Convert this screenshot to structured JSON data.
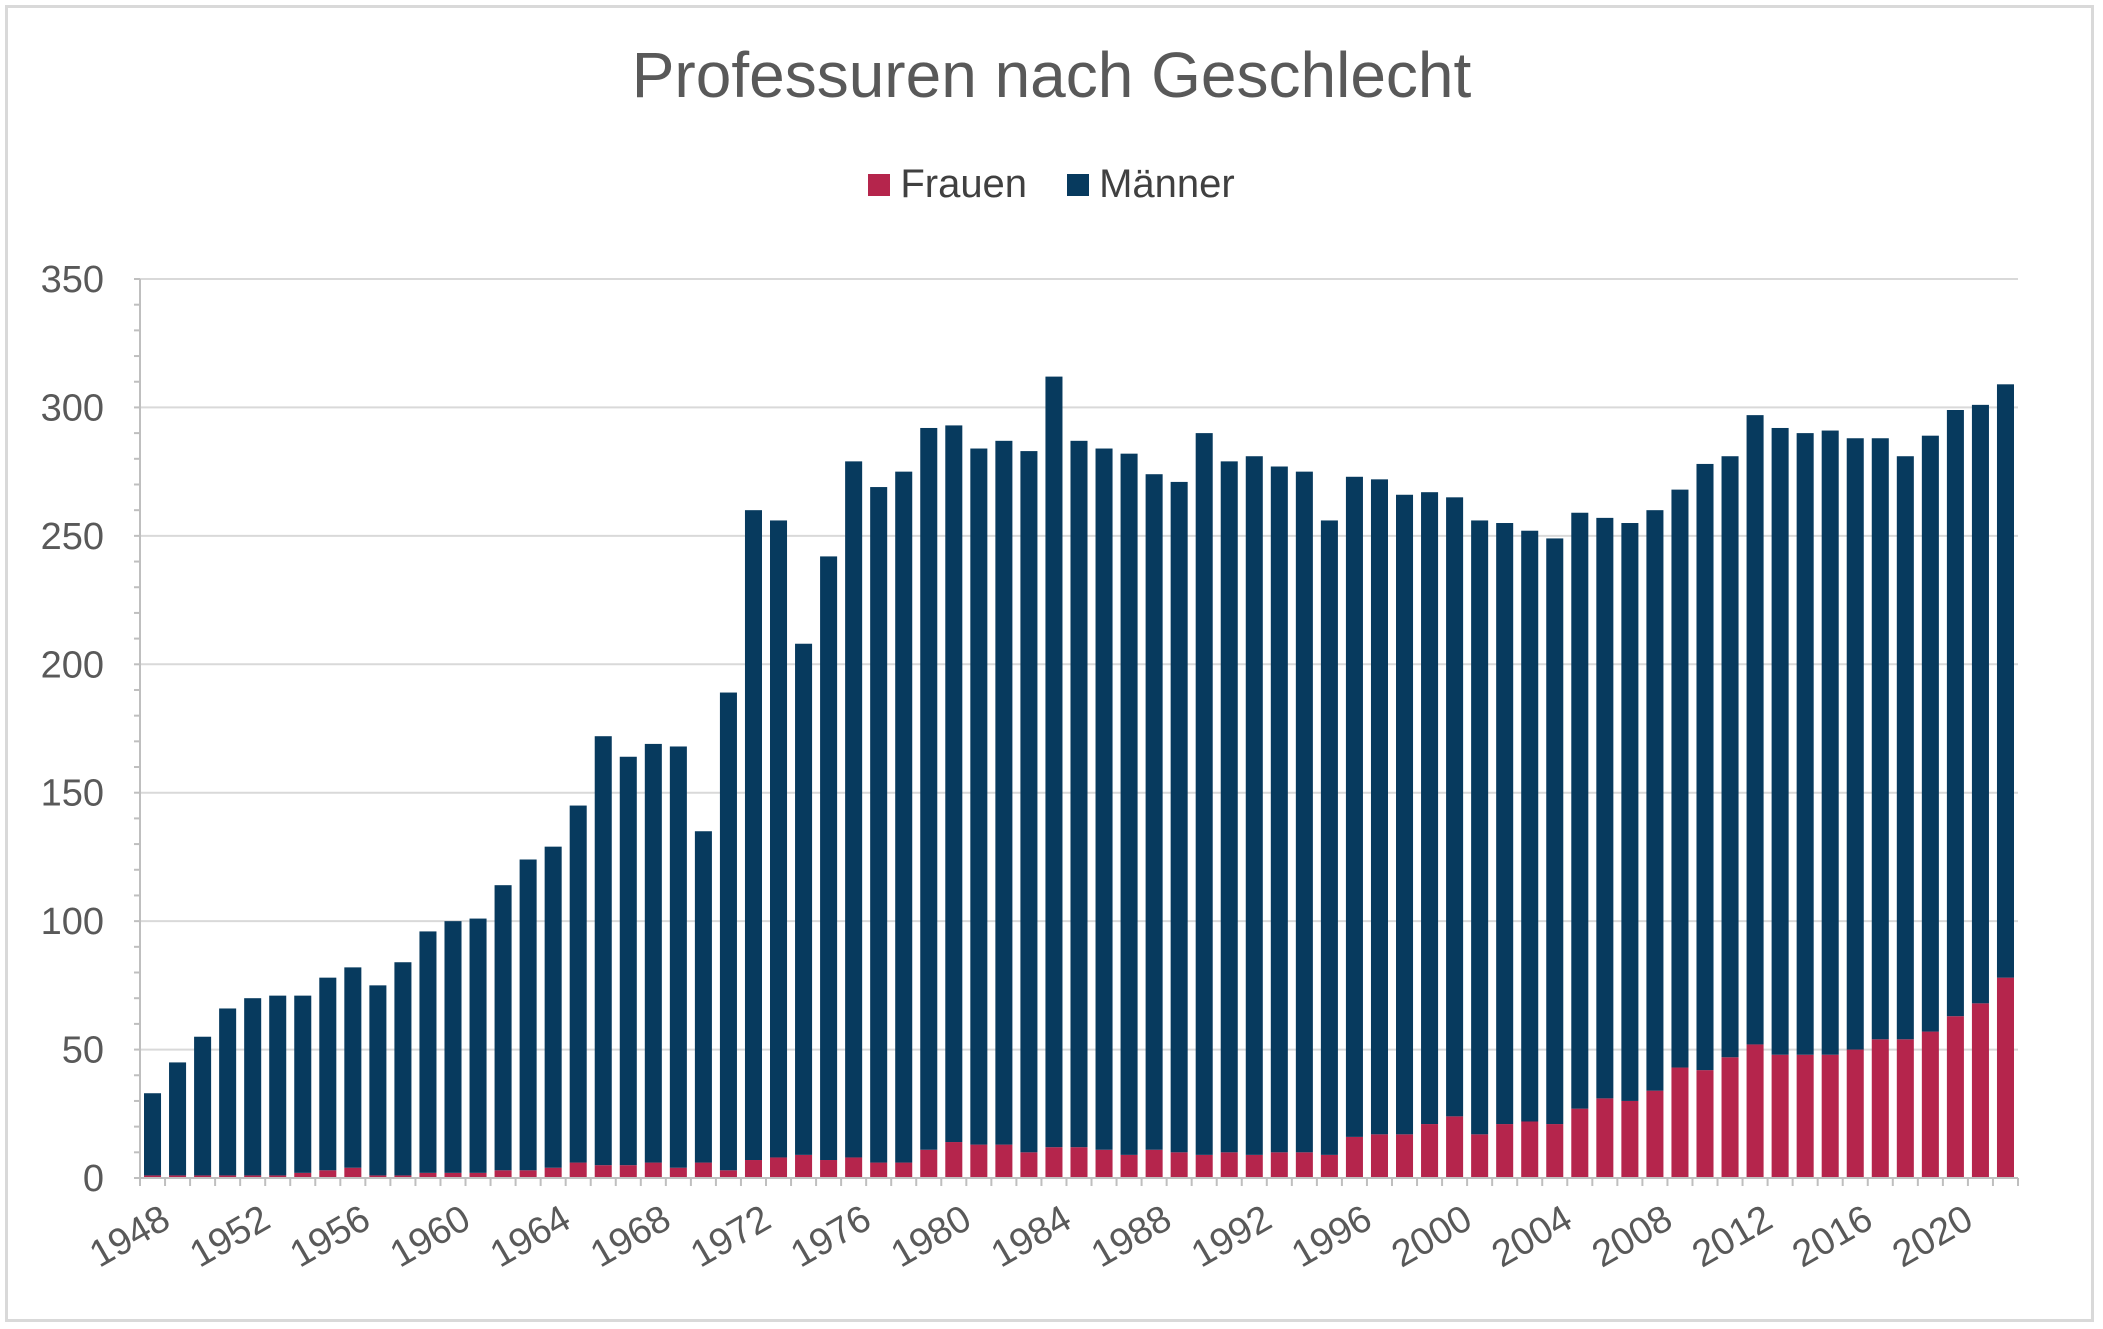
{
  "chart_data": {
    "type": "bar",
    "stacked": true,
    "title": "Professuren nach Geschlecht",
    "xlabel": "",
    "ylabel": "",
    "ylim": [
      0,
      350
    ],
    "yticks": [
      0,
      50,
      100,
      150,
      200,
      250,
      300,
      350
    ],
    "grid": true,
    "legend_position": "top",
    "x": [
      1948,
      1949,
      1950,
      1951,
      1952,
      1953,
      1954,
      1955,
      1956,
      1957,
      1958,
      1959,
      1960,
      1961,
      1962,
      1963,
      1964,
      1965,
      1966,
      1967,
      1968,
      1969,
      1970,
      1971,
      1972,
      1973,
      1974,
      1975,
      1976,
      1977,
      1978,
      1979,
      1980,
      1981,
      1982,
      1983,
      1984,
      1985,
      1986,
      1987,
      1988,
      1989,
      1990,
      1991,
      1992,
      1993,
      1994,
      1995,
      1996,
      1997,
      1998,
      1999,
      2000,
      2001,
      2002,
      2003,
      2004,
      2005,
      2006,
      2007,
      2008,
      2009,
      2010,
      2011,
      2012,
      2013,
      2014,
      2015,
      2016,
      2017,
      2018,
      2019,
      2020,
      2021,
      2022
    ],
    "xtick_labels": [
      "1948",
      "1952",
      "1956",
      "1960",
      "1964",
      "1968",
      "1972",
      "1976",
      "1980",
      "1984",
      "1988",
      "1992",
      "1996",
      "2000",
      "2004",
      "2008",
      "2012",
      "2016",
      "2020"
    ],
    "series": [
      {
        "name": "Frauen",
        "color": "#b5254c",
        "values": [
          1,
          1,
          1,
          1,
          1,
          1,
          2,
          3,
          4,
          1,
          1,
          2,
          2,
          2,
          3,
          3,
          4,
          6,
          5,
          5,
          6,
          4,
          6,
          3,
          7,
          8,
          9,
          7,
          8,
          6,
          6,
          11,
          14,
          13,
          13,
          10,
          12,
          12,
          11,
          9,
          11,
          10,
          9,
          10,
          9,
          10,
          10,
          9,
          16,
          17,
          17,
          21,
          24,
          17,
          21,
          22,
          21,
          27,
          31,
          30,
          34,
          43,
          42,
          47,
          52,
          48,
          48,
          48,
          50,
          54,
          54,
          57,
          63,
          68,
          78
        ]
      },
      {
        "name": "Männer",
        "color": "#073a5e",
        "values": [
          32,
          44,
          54,
          65,
          69,
          70,
          69,
          75,
          78,
          74,
          83,
          94,
          98,
          99,
          111,
          121,
          125,
          139,
          167,
          159,
          163,
          164,
          129,
          186,
          253,
          248,
          199,
          235,
          271,
          263,
          269,
          281,
          279,
          271,
          274,
          273,
          300,
          275,
          273,
          273,
          263,
          261,
          281,
          269,
          272,
          267,
          265,
          247,
          257,
          255,
          249,
          246,
          241,
          239,
          234,
          230,
          228,
          232,
          226,
          225,
          226,
          225,
          236,
          234,
          245,
          244,
          242,
          243,
          238,
          234,
          227,
          232,
          236,
          233,
          231
        ]
      }
    ]
  }
}
